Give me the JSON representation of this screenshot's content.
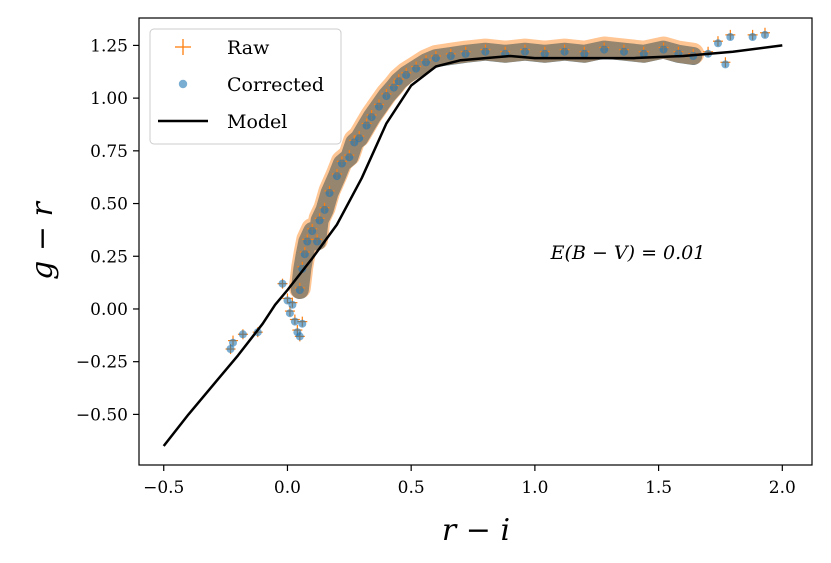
{
  "chart_data": {
    "type": "scatter",
    "title": "",
    "xlabel": "r − i",
    "ylabel": "g − r",
    "xlim": [
      -0.6,
      2.12
    ],
    "ylim": [
      -0.74,
      1.38
    ],
    "xticks": [
      -0.5,
      0.0,
      0.5,
      1.0,
      1.5,
      2.0
    ],
    "xtick_labels": [
      "−0.5",
      "0.0",
      "0.5",
      "1.0",
      "1.5",
      "2.0"
    ],
    "yticks": [
      -0.5,
      -0.25,
      0.0,
      0.25,
      0.5,
      0.75,
      1.0,
      1.25
    ],
    "ytick_labels": [
      "−0.50",
      "−0.25",
      "0.00",
      "0.25",
      "0.50",
      "0.75",
      "1.00",
      "1.25"
    ],
    "grid": false,
    "legend_position": "top-left",
    "annotation": "E(B − V) = 0.01",
    "series": [
      {
        "name": "Raw",
        "kind": "scatter",
        "marker": "plus",
        "color": "#ff7f0e",
        "points": [
          [
            -0.23,
            -0.19
          ],
          [
            -0.22,
            -0.15
          ],
          [
            -0.18,
            -0.12
          ],
          [
            -0.12,
            -0.11
          ],
          [
            -0.02,
            0.12
          ],
          [
            0.0,
            0.05
          ],
          [
            0.01,
            -0.01
          ],
          [
            0.02,
            0.03
          ],
          [
            0.03,
            -0.05
          ],
          [
            0.04,
            -0.1
          ],
          [
            0.05,
            -0.13
          ],
          [
            0.06,
            -0.06
          ],
          [
            0.05,
            0.1
          ],
          [
            0.06,
            0.2
          ],
          [
            0.07,
            0.27
          ],
          [
            0.08,
            0.33
          ],
          [
            0.1,
            0.38
          ],
          [
            0.12,
            0.33
          ],
          [
            0.13,
            0.43
          ],
          [
            0.15,
            0.48
          ],
          [
            0.17,
            0.56
          ],
          [
            0.2,
            0.64
          ],
          [
            0.22,
            0.7
          ],
          [
            0.25,
            0.73
          ],
          [
            0.27,
            0.8
          ],
          [
            0.29,
            0.82
          ],
          [
            0.32,
            0.88
          ],
          [
            0.34,
            0.92
          ],
          [
            0.37,
            0.97
          ],
          [
            0.4,
            1.02
          ],
          [
            0.43,
            1.06
          ],
          [
            0.45,
            1.09
          ],
          [
            0.48,
            1.12
          ],
          [
            0.52,
            1.15
          ],
          [
            0.56,
            1.18
          ],
          [
            0.6,
            1.2
          ],
          [
            0.66,
            1.21
          ],
          [
            0.72,
            1.22
          ],
          [
            0.8,
            1.23
          ],
          [
            0.88,
            1.22
          ],
          [
            0.96,
            1.23
          ],
          [
            1.04,
            1.22
          ],
          [
            1.12,
            1.23
          ],
          [
            1.2,
            1.22
          ],
          [
            1.28,
            1.24
          ],
          [
            1.36,
            1.23
          ],
          [
            1.44,
            1.22
          ],
          [
            1.52,
            1.24
          ],
          [
            1.58,
            1.22
          ],
          [
            1.64,
            1.21
          ],
          [
            1.7,
            1.22
          ],
          [
            1.74,
            1.27
          ],
          [
            1.77,
            1.17
          ],
          [
            1.79,
            1.3
          ],
          [
            1.88,
            1.3
          ],
          [
            1.93,
            1.31
          ]
        ]
      },
      {
        "name": "Corrected",
        "kind": "scatter",
        "marker": "circle",
        "color": "#1f77b4",
        "points": [
          [
            -0.23,
            -0.19
          ],
          [
            -0.22,
            -0.16
          ],
          [
            -0.18,
            -0.12
          ],
          [
            -0.12,
            -0.11
          ],
          [
            -0.02,
            0.12
          ],
          [
            0.0,
            0.04
          ],
          [
            0.01,
            -0.02
          ],
          [
            0.02,
            0.02
          ],
          [
            0.03,
            -0.06
          ],
          [
            0.04,
            -0.11
          ],
          [
            0.05,
            -0.13
          ],
          [
            0.06,
            -0.07
          ],
          [
            0.05,
            0.09
          ],
          [
            0.06,
            0.19
          ],
          [
            0.07,
            0.26
          ],
          [
            0.08,
            0.32
          ],
          [
            0.1,
            0.37
          ],
          [
            0.12,
            0.32
          ],
          [
            0.13,
            0.42
          ],
          [
            0.15,
            0.47
          ],
          [
            0.17,
            0.55
          ],
          [
            0.2,
            0.63
          ],
          [
            0.22,
            0.69
          ],
          [
            0.25,
            0.72
          ],
          [
            0.27,
            0.79
          ],
          [
            0.29,
            0.81
          ],
          [
            0.32,
            0.87
          ],
          [
            0.34,
            0.91
          ],
          [
            0.37,
            0.96
          ],
          [
            0.4,
            1.01
          ],
          [
            0.43,
            1.05
          ],
          [
            0.45,
            1.08
          ],
          [
            0.48,
            1.11
          ],
          [
            0.52,
            1.14
          ],
          [
            0.56,
            1.17
          ],
          [
            0.6,
            1.19
          ],
          [
            0.66,
            1.2
          ],
          [
            0.72,
            1.21
          ],
          [
            0.8,
            1.22
          ],
          [
            0.88,
            1.21
          ],
          [
            0.96,
            1.22
          ],
          [
            1.04,
            1.21
          ],
          [
            1.12,
            1.22
          ],
          [
            1.2,
            1.21
          ],
          [
            1.28,
            1.23
          ],
          [
            1.36,
            1.22
          ],
          [
            1.44,
            1.21
          ],
          [
            1.52,
            1.23
          ],
          [
            1.58,
            1.21
          ],
          [
            1.64,
            1.2
          ],
          [
            1.7,
            1.21
          ],
          [
            1.74,
            1.26
          ],
          [
            1.77,
            1.16
          ],
          [
            1.79,
            1.29
          ],
          [
            1.88,
            1.29
          ],
          [
            1.93,
            1.3
          ]
        ]
      },
      {
        "name": "Model",
        "kind": "line",
        "color": "#000000",
        "points": [
          [
            -0.5,
            -0.65
          ],
          [
            -0.4,
            -0.5
          ],
          [
            -0.3,
            -0.36
          ],
          [
            -0.2,
            -0.22
          ],
          [
            -0.1,
            -0.07
          ],
          [
            -0.05,
            0.02
          ],
          [
            0.0,
            0.09
          ],
          [
            0.1,
            0.24
          ],
          [
            0.2,
            0.4
          ],
          [
            0.3,
            0.62
          ],
          [
            0.4,
            0.88
          ],
          [
            0.5,
            1.06
          ],
          [
            0.6,
            1.15
          ],
          [
            0.7,
            1.18
          ],
          [
            0.8,
            1.19
          ],
          [
            0.9,
            1.2
          ],
          [
            1.0,
            1.19
          ],
          [
            1.2,
            1.19
          ],
          [
            1.4,
            1.19
          ],
          [
            1.6,
            1.2
          ],
          [
            1.8,
            1.22
          ],
          [
            2.0,
            1.25
          ]
        ]
      }
    ]
  }
}
